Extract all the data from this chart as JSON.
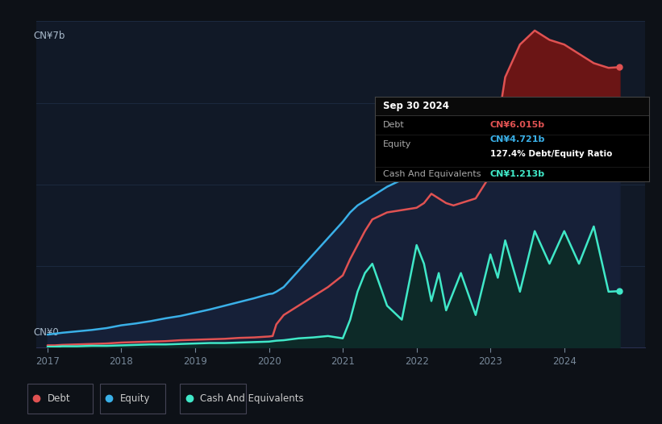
{
  "background_color": "#0d1117",
  "plot_bg_color": "#111927",
  "title": "Sep 30 2024",
  "y_label_top": "CN¥7b",
  "y_label_bottom": "CN¥0",
  "x_ticks": [
    2017,
    2018,
    2019,
    2020,
    2021,
    2022,
    2023,
    2024
  ],
  "debt_color": "#e05252",
  "equity_color": "#3ab0e8",
  "cash_color": "#40e8c8",
  "debt_fill_color": "#6b1515",
  "equity_fill_color": "#162038",
  "cash_fill_color": "#0d2a28",
  "debt_label": "Debt",
  "equity_label": "Equity",
  "cash_label": "Cash And Equivalents",
  "debt_value": "CN¥6.015b",
  "equity_value": "CN¥4.721b",
  "ratio_text": "127.4% Debt/Equity Ratio",
  "cash_value": "CN¥1.213b",
  "times": [
    2017.0,
    2017.1,
    2017.2,
    2017.4,
    2017.6,
    2017.8,
    2018.0,
    2018.2,
    2018.4,
    2018.6,
    2018.8,
    2019.0,
    2019.2,
    2019.4,
    2019.6,
    2019.8,
    2020.0,
    2020.05,
    2020.1,
    2020.2,
    2020.4,
    2020.6,
    2020.8,
    2021.0,
    2021.1,
    2021.2,
    2021.3,
    2021.4,
    2021.6,
    2021.8,
    2022.0,
    2022.1,
    2022.2,
    2022.3,
    2022.4,
    2022.5,
    2022.6,
    2022.8,
    2023.0,
    2023.1,
    2023.2,
    2023.4,
    2023.6,
    2023.8,
    2024.0,
    2024.2,
    2024.4,
    2024.6,
    2024.75
  ],
  "debt": [
    0.05,
    0.05,
    0.06,
    0.07,
    0.08,
    0.09,
    0.11,
    0.12,
    0.13,
    0.14,
    0.16,
    0.17,
    0.18,
    0.19,
    0.21,
    0.22,
    0.24,
    0.25,
    0.5,
    0.7,
    0.9,
    1.1,
    1.3,
    1.55,
    1.9,
    2.2,
    2.5,
    2.75,
    2.9,
    2.95,
    3.0,
    3.1,
    3.3,
    3.2,
    3.1,
    3.05,
    3.1,
    3.2,
    3.7,
    4.8,
    5.8,
    6.5,
    6.8,
    6.6,
    6.5,
    6.3,
    6.1,
    6.0,
    6.015
  ],
  "equity": [
    0.28,
    0.3,
    0.32,
    0.35,
    0.38,
    0.42,
    0.48,
    0.52,
    0.57,
    0.63,
    0.68,
    0.75,
    0.82,
    0.9,
    0.98,
    1.06,
    1.15,
    1.16,
    1.2,
    1.3,
    1.65,
    2.0,
    2.35,
    2.7,
    2.9,
    3.05,
    3.15,
    3.25,
    3.45,
    3.6,
    3.72,
    3.78,
    3.82,
    3.85,
    3.88,
    3.9,
    3.92,
    3.96,
    4.0,
    4.08,
    4.15,
    4.28,
    4.4,
    4.5,
    4.55,
    4.6,
    4.65,
    4.69,
    4.721
  ],
  "cash": [
    0.02,
    0.02,
    0.03,
    0.03,
    0.04,
    0.04,
    0.05,
    0.06,
    0.07,
    0.07,
    0.08,
    0.09,
    0.1,
    0.1,
    0.11,
    0.12,
    0.13,
    0.14,
    0.15,
    0.16,
    0.2,
    0.22,
    0.25,
    0.2,
    0.6,
    1.2,
    1.6,
    1.8,
    0.9,
    0.6,
    2.2,
    1.8,
    1.0,
    1.6,
    0.8,
    1.2,
    1.6,
    0.7,
    2.0,
    1.5,
    2.3,
    1.2,
    2.5,
    1.8,
    2.5,
    1.8,
    2.6,
    1.2,
    1.213
  ],
  "grid_y_values": [
    0.0,
    1.75,
    3.5,
    5.25,
    7.0
  ],
  "ylim": [
    0,
    7.0
  ],
  "xlim": [
    2016.85,
    2025.1
  ]
}
